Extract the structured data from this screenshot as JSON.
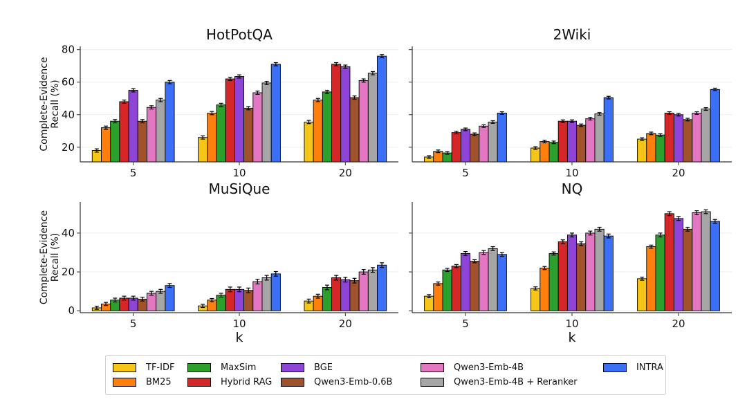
{
  "colors": {
    "TF-IDF": "#f5c518",
    "BM25": "#ff7f0e",
    "MaxSim": "#2ca02c",
    "Hybrid RAG": "#d62728",
    "BGE": "#8e44d6",
    "Qwen3-Emb-0.6B": "#a0522d",
    "Qwen3-Emb-4B": "#e377c2",
    "Qwen3-Emb-4B + Reranker": "#a6a6a6",
    "INTRA": "#3b6ff5"
  },
  "legend": {
    "entries": [
      "TF-IDF",
      "BM25",
      "MaxSim",
      "Hybrid RAG",
      "BGE",
      "Qwen3-Emb-0.6B",
      "Qwen3-Emb-4B",
      "Qwen3-Emb-4B + Reranker",
      "INTRA"
    ],
    "placement": "bottom-center"
  },
  "chart_data": [
    {
      "type": "bar",
      "title": "HotPotQA",
      "xlabel": "",
      "ylabel": "Complete-Evidence\nRecall (%)",
      "categories": [
        "5",
        "10",
        "20"
      ],
      "ylim": [
        11,
        82
      ],
      "yticks": [
        20,
        40,
        60,
        80
      ],
      "grid": true,
      "series": [
        {
          "name": "TF-IDF",
          "values": [
            18,
            26,
            35.5
          ],
          "errors": [
            1,
            1,
            1
          ]
        },
        {
          "name": "BM25",
          "values": [
            32,
            41,
            49
          ],
          "errors": [
            1,
            1,
            1
          ]
        },
        {
          "name": "MaxSim",
          "values": [
            36,
            46,
            54
          ],
          "errors": [
            1,
            1,
            1
          ]
        },
        {
          "name": "Hybrid RAG",
          "values": [
            48,
            62,
            71
          ],
          "errors": [
            1,
            1,
            1
          ]
        },
        {
          "name": "BGE",
          "values": [
            55,
            63.5,
            69.5
          ],
          "errors": [
            1,
            1,
            1
          ]
        },
        {
          "name": "Qwen3-Emb-0.6B",
          "values": [
            36,
            44,
            50.5
          ],
          "errors": [
            1,
            1,
            1
          ]
        },
        {
          "name": "Qwen3-Emb-4B",
          "values": [
            44.5,
            53.5,
            61
          ],
          "errors": [
            1,
            1,
            1
          ]
        },
        {
          "name": "Qwen3-Emb-4B + Reranker",
          "values": [
            49,
            59.5,
            65.5
          ],
          "errors": [
            1,
            1,
            1
          ]
        },
        {
          "name": "INTRA",
          "values": [
            60,
            71,
            76
          ],
          "errors": [
            1,
            1,
            1
          ]
        }
      ]
    },
    {
      "type": "bar",
      "title": "2Wiki",
      "xlabel": "",
      "ylabel": "",
      "categories": [
        "5",
        "10",
        "20"
      ],
      "ylim": [
        11,
        82
      ],
      "yticks": [],
      "grid": true,
      "series": [
        {
          "name": "TF-IDF",
          "values": [
            14,
            19.5,
            25
          ],
          "errors": [
            0.8,
            0.8,
            0.8
          ]
        },
        {
          "name": "BM25",
          "values": [
            17.5,
            23.5,
            28.5
          ],
          "errors": [
            0.8,
            0.8,
            0.8
          ]
        },
        {
          "name": "MaxSim",
          "values": [
            16.5,
            23,
            27.5
          ],
          "errors": [
            0.8,
            0.8,
            0.8
          ]
        },
        {
          "name": "Hybrid RAG",
          "values": [
            29,
            36,
            41
          ],
          "errors": [
            0.8,
            0.8,
            0.8
          ]
        },
        {
          "name": "BGE",
          "values": [
            31,
            36,
            40
          ],
          "errors": [
            0.8,
            0.8,
            0.8
          ]
        },
        {
          "name": "Qwen3-Emb-0.6B",
          "values": [
            28,
            33.5,
            37
          ],
          "errors": [
            0.8,
            0.8,
            0.8
          ]
        },
        {
          "name": "Qwen3-Emb-4B",
          "values": [
            33,
            37.5,
            41
          ],
          "errors": [
            0.8,
            0.8,
            0.8
          ]
        },
        {
          "name": "Qwen3-Emb-4B + Reranker",
          "values": [
            35.5,
            40.5,
            43.5
          ],
          "errors": [
            0.8,
            0.8,
            0.8
          ]
        },
        {
          "name": "INTRA",
          "values": [
            41,
            50.5,
            55.5
          ],
          "errors": [
            0.8,
            0.8,
            0.8
          ]
        }
      ]
    },
    {
      "type": "bar",
      "title": "MuSiQue",
      "xlabel": "k",
      "ylabel": "Complete-Evidence\nRecall (%)",
      "categories": [
        "5",
        "10",
        "20"
      ],
      "ylim": [
        -1,
        56
      ],
      "yticks": [
        0,
        20,
        40
      ],
      "grid": true,
      "series": [
        {
          "name": "TF-IDF",
          "values": [
            1.5,
            2.5,
            5
          ],
          "errors": [
            0.8,
            0.8,
            1
          ]
        },
        {
          "name": "BM25",
          "values": [
            3.5,
            5.5,
            7.5
          ],
          "errors": [
            0.8,
            0.8,
            1
          ]
        },
        {
          "name": "MaxSim",
          "values": [
            5.5,
            8,
            12
          ],
          "errors": [
            1,
            1,
            1.2
          ]
        },
        {
          "name": "Hybrid RAG",
          "values": [
            6.5,
            11,
            17
          ],
          "errors": [
            1,
            1.2,
            1.2
          ]
        },
        {
          "name": "BGE",
          "values": [
            6.5,
            11,
            16
          ],
          "errors": [
            1,
            1.2,
            1.2
          ]
        },
        {
          "name": "Qwen3-Emb-0.6B",
          "values": [
            6,
            10.5,
            15.5
          ],
          "errors": [
            1,
            1.2,
            1.2
          ]
        },
        {
          "name": "Qwen3-Emb-4B",
          "values": [
            9,
            15,
            20
          ],
          "errors": [
            1,
            1.2,
            1.2
          ]
        },
        {
          "name": "Qwen3-Emb-4B + Reranker",
          "values": [
            10,
            17,
            21
          ],
          "errors": [
            1,
            1.2,
            1.2
          ]
        },
        {
          "name": "INTRA",
          "values": [
            13,
            19,
            23.5
          ],
          "errors": [
            1,
            1.2,
            1.2
          ]
        }
      ]
    },
    {
      "type": "bar",
      "title": "NQ",
      "xlabel": "k",
      "ylabel": "",
      "categories": [
        "5",
        "10",
        "20"
      ],
      "ylim": [
        -1,
        56
      ],
      "yticks": [],
      "grid": true,
      "series": [
        {
          "name": "TF-IDF",
          "values": [
            7.5,
            11.5,
            16.5
          ],
          "errors": [
            0.8,
            0.8,
            0.8
          ]
        },
        {
          "name": "BM25",
          "values": [
            14,
            22,
            33
          ],
          "errors": [
            0.8,
            0.8,
            0.8
          ]
        },
        {
          "name": "MaxSim",
          "values": [
            21,
            29.5,
            39
          ],
          "errors": [
            0.8,
            0.8,
            1
          ]
        },
        {
          "name": "Hybrid RAG",
          "values": [
            23,
            35.5,
            50
          ],
          "errors": [
            0.8,
            1,
            1
          ]
        },
        {
          "name": "BGE",
          "values": [
            29.5,
            39,
            47.5
          ],
          "errors": [
            1,
            1,
            1
          ]
        },
        {
          "name": "Qwen3-Emb-0.6B",
          "values": [
            25.5,
            34.5,
            42
          ],
          "errors": [
            0.8,
            1,
            1
          ]
        },
        {
          "name": "Qwen3-Emb-4B",
          "values": [
            30,
            40,
            50.5
          ],
          "errors": [
            1,
            1,
            1
          ]
        },
        {
          "name": "Qwen3-Emb-4B + Reranker",
          "values": [
            32,
            42,
            51
          ],
          "errors": [
            1,
            1,
            1
          ]
        },
        {
          "name": "INTRA",
          "values": [
            29,
            38.5,
            46
          ],
          "errors": [
            1,
            1,
            1
          ]
        }
      ]
    }
  ]
}
